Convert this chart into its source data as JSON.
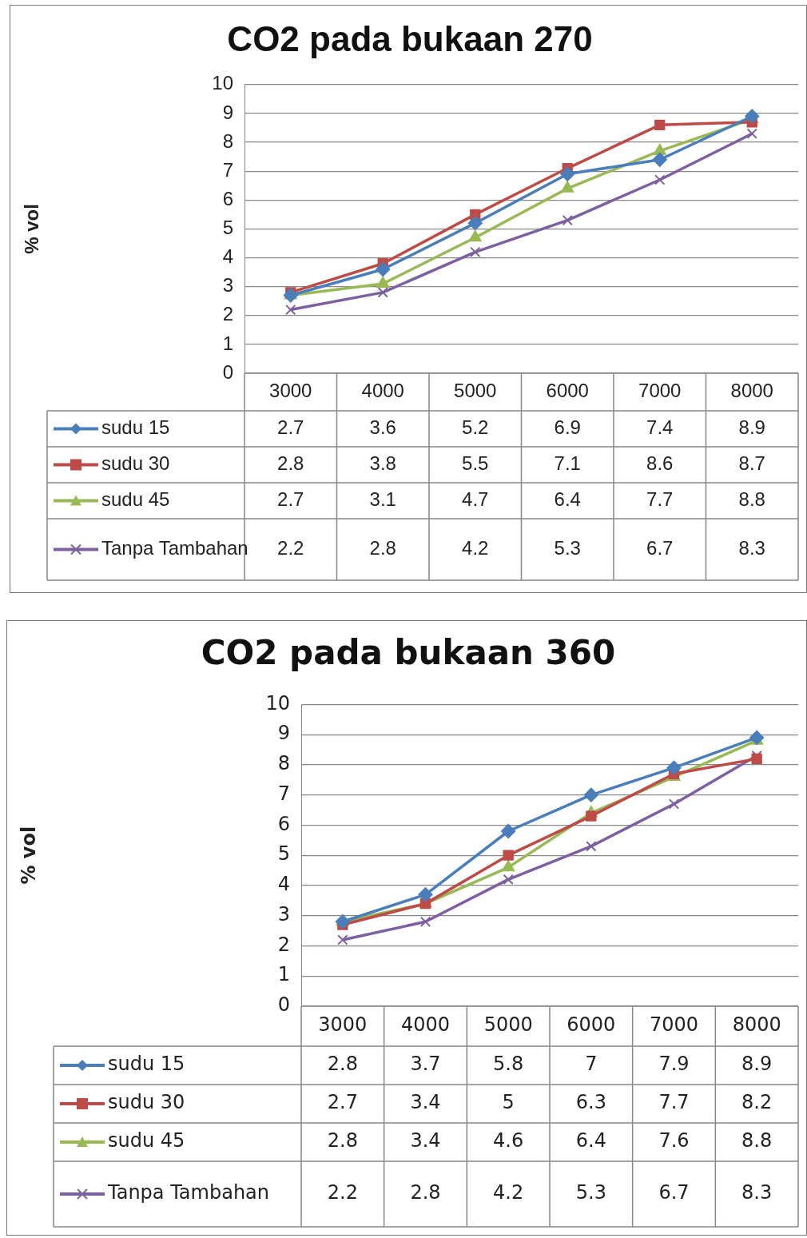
{
  "chart_data": [
    {
      "type": "line",
      "title": "CO2 pada bukaan 270",
      "ylabel": "% vol",
      "categories": [
        "3000",
        "4000",
        "5000",
        "6000",
        "7000",
        "8000"
      ],
      "series": [
        {
          "name": "sudu 15",
          "color": "#4a7ebb",
          "marker": "diamond",
          "values": [
            2.7,
            3.6,
            5.2,
            6.9,
            7.4,
            8.9
          ]
        },
        {
          "name": "sudu 30",
          "color": "#be4b48",
          "marker": "square",
          "values": [
            2.8,
            3.8,
            5.5,
            7.1,
            8.6,
            8.7
          ]
        },
        {
          "name": "sudu 45",
          "color": "#98b954",
          "marker": "triangle",
          "values": [
            2.7,
            3.1,
            4.7,
            6.4,
            7.7,
            8.8
          ]
        },
        {
          "name": "Tanpa Tambahan",
          "color": "#7d60a0",
          "marker": "cross",
          "values": [
            2.2,
            2.8,
            4.2,
            5.3,
            6.7,
            8.3
          ]
        }
      ],
      "ylim": [
        0,
        10
      ],
      "yticks": [
        0,
        1,
        2,
        3,
        4,
        5,
        6,
        7,
        8,
        9,
        10
      ],
      "grid": "y",
      "legend": "bottom",
      "data_labels": true
    },
    {
      "type": "line",
      "title": "CO2 pada bukaan 360",
      "ylabel": "% vol",
      "categories": [
        "3000",
        "4000",
        "5000",
        "6000",
        "7000",
        "8000"
      ],
      "series": [
        {
          "name": "sudu 15",
          "color": "#4a7ebb",
          "marker": "diamond",
          "values": [
            2.8,
            3.7,
            5.8,
            7,
            7.9,
            8.9
          ]
        },
        {
          "name": "sudu 30",
          "color": "#be4b48",
          "marker": "square",
          "values": [
            2.7,
            3.4,
            5,
            6.3,
            7.7,
            8.2
          ]
        },
        {
          "name": "sudu 45",
          "color": "#98b954",
          "marker": "triangle",
          "values": [
            2.8,
            3.4,
            4.6,
            6.4,
            7.6,
            8.8
          ]
        },
        {
          "name": "Tanpa Tambahan",
          "color": "#7d60a0",
          "marker": "cross",
          "values": [
            2.2,
            2.8,
            4.2,
            5.3,
            6.7,
            8.3
          ]
        }
      ],
      "ylim": [
        0,
        10
      ],
      "yticks": [
        0,
        1,
        2,
        3,
        4,
        5,
        6,
        7,
        8,
        9,
        10
      ],
      "grid": "y",
      "legend": "bottom",
      "data_labels": true
    }
  ]
}
